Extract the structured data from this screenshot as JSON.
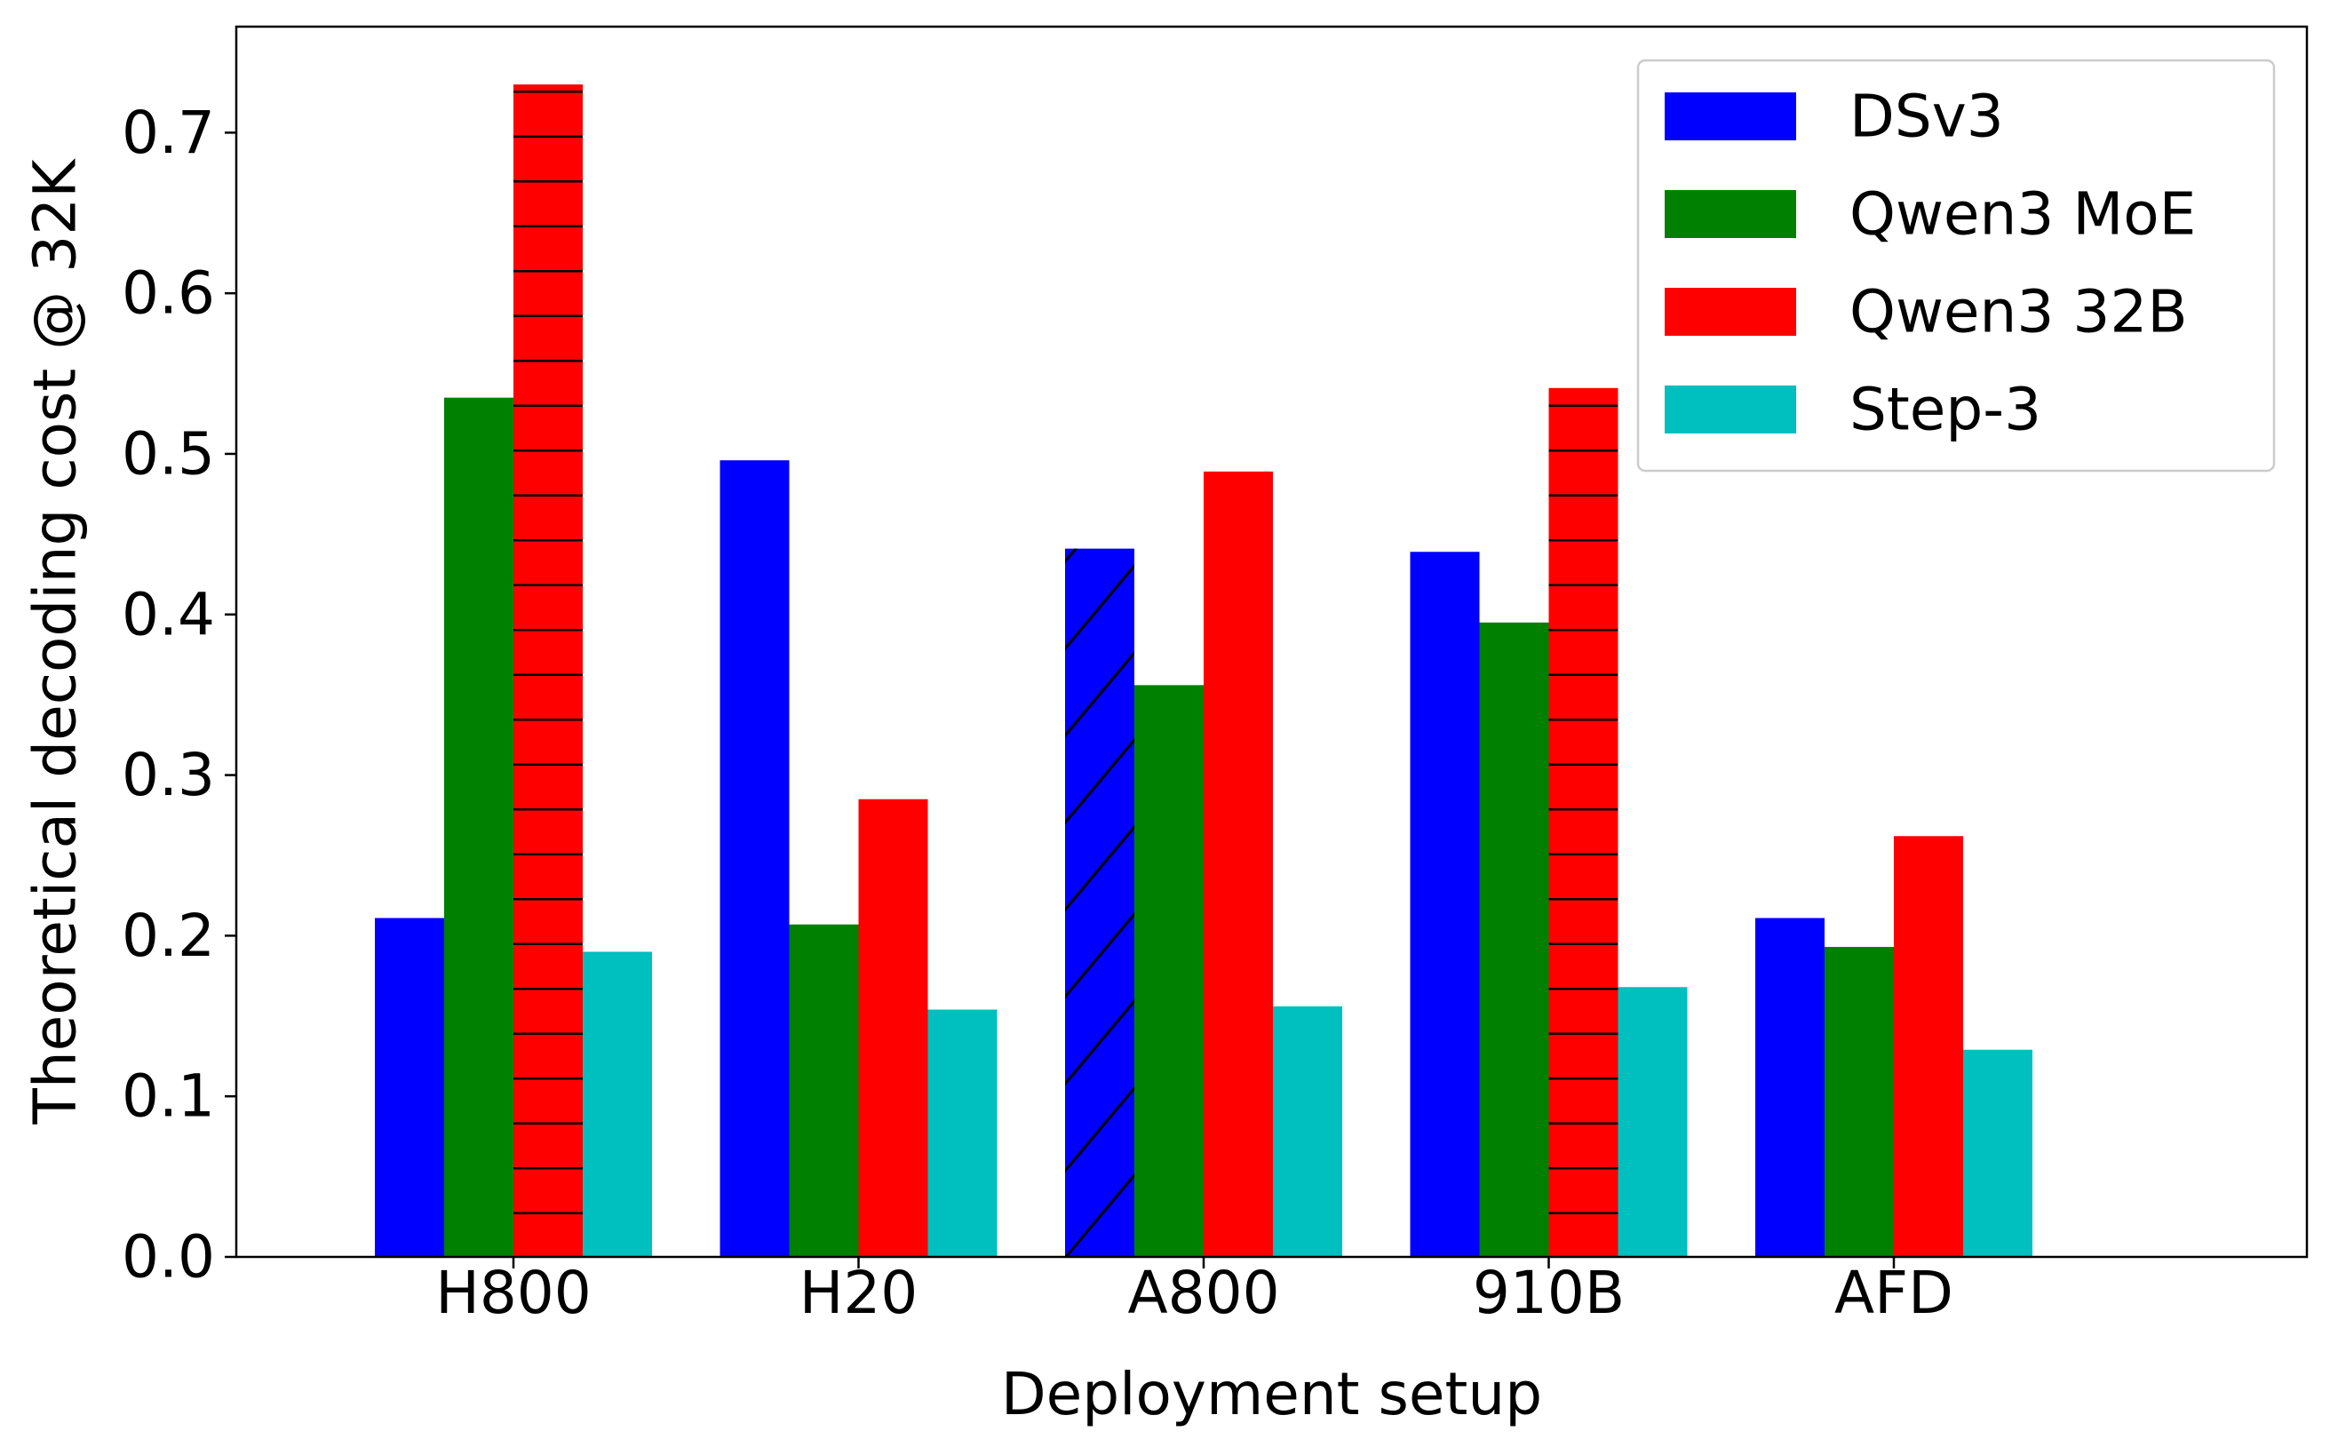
{
  "chart_data": {
    "type": "bar",
    "title": "",
    "xlabel": "Deployment setup",
    "ylabel": "Theoretical decoding cost @ 32K",
    "ylim": [
      0,
      0.766
    ],
    "yticks": [
      "0.0",
      "0.1",
      "0.2",
      "0.3",
      "0.4",
      "0.5",
      "0.6",
      "0.7"
    ],
    "categories": [
      "H800",
      "H20",
      "A800",
      "910B",
      "AFD"
    ],
    "grid": false,
    "legend_position": "top-right",
    "series": [
      {
        "name": "DSv3",
        "color": "#0000ff",
        "values": [
          0.211,
          0.496,
          0.441,
          0.439,
          0.211
        ],
        "hatch": [
          "none",
          "none",
          "diagonal",
          "none",
          "none"
        ]
      },
      {
        "name": "Qwen3 MoE",
        "color": "#008000",
        "values": [
          0.535,
          0.207,
          0.356,
          0.395,
          0.193
        ],
        "hatch": [
          "none",
          "none",
          "none",
          "none",
          "none"
        ]
      },
      {
        "name": "Qwen3 32B",
        "color": "#ff0000",
        "values": [
          0.73,
          0.285,
          0.489,
          0.541,
          0.262
        ],
        "hatch": [
          "horizontal",
          "none",
          "none",
          "horizontal",
          "none"
        ]
      },
      {
        "name": "Step-3",
        "color": "#00bfbf",
        "values": [
          0.19,
          0.154,
          0.156,
          0.168,
          0.129
        ],
        "hatch": [
          "none",
          "none",
          "none",
          "none",
          "none"
        ]
      }
    ]
  }
}
